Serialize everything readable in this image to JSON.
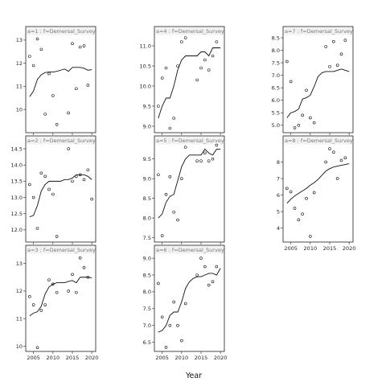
{
  "chart_data": {
    "type": "scatter",
    "xlabel": "Year",
    "x_ticks": [
      2005,
      2010,
      2015,
      2020
    ],
    "xlim": [
      2003,
      2021
    ],
    "panels": [
      {
        "strip": "a=1 : f=Demersal_Survey",
        "ylim": [
          9.1,
          13.1
        ],
        "y_ticks": [
          10,
          11,
          12,
          13
        ],
        "points": [
          [
            2004,
            12.3
          ],
          [
            2005,
            11.9
          ],
          [
            2006,
            13.05
          ],
          [
            2007,
            12.6
          ],
          [
            2008,
            9.8
          ],
          [
            2009,
            11.55
          ],
          [
            2010,
            10.6
          ],
          [
            2011,
            9.35
          ],
          [
            2014,
            9.85
          ],
          [
            2015,
            12.85
          ],
          [
            2016,
            10.9
          ],
          [
            2017,
            12.7
          ],
          [
            2018,
            12.75
          ],
          [
            2019,
            11.05
          ]
        ],
        "fit": [
          [
            2004,
            10.55
          ],
          [
            2005,
            10.8
          ],
          [
            2006,
            11.3
          ],
          [
            2007,
            11.5
          ],
          [
            2008,
            11.6
          ],
          [
            2009,
            11.62
          ],
          [
            2010,
            11.62
          ],
          [
            2011,
            11.65
          ],
          [
            2012,
            11.7
          ],
          [
            2013,
            11.75
          ],
          [
            2014,
            11.65
          ],
          [
            2015,
            11.82
          ],
          [
            2016,
            11.82
          ],
          [
            2017,
            11.82
          ],
          [
            2018,
            11.78
          ],
          [
            2019,
            11.7
          ],
          [
            2020,
            11.72
          ]
        ]
      },
      {
        "strip": "a=2 : f=Demersal_Survey",
        "ylim": [
          11.7,
          14.55
        ],
        "y_ticks": [
          12.0,
          12.5,
          13.0,
          13.5,
          14.0,
          14.5
        ],
        "points": [
          [
            2004,
            13.4
          ],
          [
            2005,
            13.0
          ],
          [
            2006,
            12.05
          ],
          [
            2007,
            13.75
          ],
          [
            2008,
            13.65
          ],
          [
            2009,
            13.25
          ],
          [
            2010,
            13.1
          ],
          [
            2011,
            11.8
          ],
          [
            2014,
            14.5
          ],
          [
            2015,
            13.5
          ],
          [
            2016,
            13.65
          ],
          [
            2017,
            13.7
          ],
          [
            2018,
            13.55
          ],
          [
            2019,
            13.85
          ],
          [
            2020,
            12.95
          ]
        ],
        "fit": [
          [
            2004,
            12.4
          ],
          [
            2005,
            12.45
          ],
          [
            2006,
            12.75
          ],
          [
            2007,
            13.2
          ],
          [
            2008,
            13.4
          ],
          [
            2009,
            13.5
          ],
          [
            2010,
            13.5
          ],
          [
            2011,
            13.5
          ],
          [
            2012,
            13.5
          ],
          [
            2013,
            13.55
          ],
          [
            2014,
            13.55
          ],
          [
            2015,
            13.6
          ],
          [
            2016,
            13.7
          ],
          [
            2017,
            13.7
          ],
          [
            2018,
            13.7
          ],
          [
            2019,
            13.65
          ],
          [
            2020,
            13.55
          ]
        ]
      },
      {
        "strip": "a=3 : f=Demersal_Survey",
        "ylim": [
          9.9,
          13.25
        ],
        "y_ticks": [
          10.0,
          11.0,
          12.0,
          13.0
        ],
        "points": [
          [
            2004,
            11.8
          ],
          [
            2005,
            11.5
          ],
          [
            2006,
            9.95
          ],
          [
            2007,
            11.3
          ],
          [
            2008,
            11.5
          ],
          [
            2009,
            12.4
          ],
          [
            2010,
            12.25
          ],
          [
            2011,
            11.95
          ],
          [
            2014,
            12.0
          ],
          [
            2015,
            12.6
          ],
          [
            2016,
            11.95
          ],
          [
            2017,
            13.2
          ],
          [
            2018,
            12.85
          ],
          [
            2019,
            12.5
          ]
        ],
        "fit": [
          [
            2004,
            11.1
          ],
          [
            2005,
            11.2
          ],
          [
            2006,
            11.25
          ],
          [
            2007,
            11.45
          ],
          [
            2008,
            11.9
          ],
          [
            2009,
            12.15
          ],
          [
            2010,
            12.25
          ],
          [
            2011,
            12.3
          ],
          [
            2012,
            12.3
          ],
          [
            2013,
            12.3
          ],
          [
            2014,
            12.35
          ],
          [
            2015,
            12.38
          ],
          [
            2016,
            12.3
          ],
          [
            2017,
            12.5
          ],
          [
            2018,
            12.5
          ],
          [
            2019,
            12.5
          ],
          [
            2020,
            12.48
          ]
        ]
      },
      {
        "strip": "a=4 : f=Demersal_Survey",
        "ylim": [
          8.9,
          11.2
        ],
        "y_ticks": [
          9.0,
          9.5,
          10.0,
          10.5,
          11.0
        ],
        "points": [
          [
            2004,
            9.5
          ],
          [
            2005,
            10.2
          ],
          [
            2006,
            10.45
          ],
          [
            2007,
            8.95
          ],
          [
            2008,
            9.2
          ],
          [
            2009,
            10.5
          ],
          [
            2010,
            11.1
          ],
          [
            2011,
            11.2
          ],
          [
            2014,
            10.15
          ],
          [
            2015,
            10.45
          ],
          [
            2016,
            10.65
          ],
          [
            2017,
            10.4
          ],
          [
            2018,
            10.75
          ],
          [
            2019,
            11.1
          ]
        ],
        "fit": [
          [
            2004,
            9.2
          ],
          [
            2005,
            9.5
          ],
          [
            2006,
            9.7
          ],
          [
            2007,
            9.7
          ],
          [
            2008,
            10.0
          ],
          [
            2009,
            10.4
          ],
          [
            2010,
            10.65
          ],
          [
            2011,
            10.75
          ],
          [
            2012,
            10.75
          ],
          [
            2013,
            10.75
          ],
          [
            2014,
            10.75
          ],
          [
            2015,
            10.85
          ],
          [
            2016,
            10.85
          ],
          [
            2017,
            10.75
          ],
          [
            2018,
            10.95
          ],
          [
            2019,
            10.95
          ],
          [
            2020,
            10.95
          ]
        ]
      },
      {
        "strip": "a=5 : f=Demersal_Survey",
        "ylim": [
          7.45,
          9.8
        ],
        "y_ticks": [
          7.5,
          8.0,
          8.5,
          9.0,
          9.5
        ],
        "points": [
          [
            2004,
            9.1
          ],
          [
            2005,
            7.55
          ],
          [
            2006,
            8.6
          ],
          [
            2007,
            9.05
          ],
          [
            2008,
            8.15
          ],
          [
            2009,
            7.95
          ],
          [
            2010,
            9.0
          ],
          [
            2011,
            9.8
          ],
          [
            2014,
            9.45
          ],
          [
            2015,
            9.45
          ],
          [
            2016,
            9.65
          ],
          [
            2017,
            9.45
          ],
          [
            2018,
            9.5
          ],
          [
            2019,
            9.85
          ]
        ],
        "fit": [
          [
            2004,
            8.0
          ],
          [
            2005,
            8.1
          ],
          [
            2006,
            8.4
          ],
          [
            2007,
            8.55
          ],
          [
            2008,
            8.6
          ],
          [
            2009,
            8.95
          ],
          [
            2010,
            9.3
          ],
          [
            2011,
            9.5
          ],
          [
            2012,
            9.6
          ],
          [
            2013,
            9.6
          ],
          [
            2014,
            9.6
          ],
          [
            2015,
            9.6
          ],
          [
            2016,
            9.75
          ],
          [
            2017,
            9.65
          ],
          [
            2018,
            9.6
          ],
          [
            2019,
            9.75
          ],
          [
            2020,
            9.75
          ]
        ]
      },
      {
        "strip": "a=6 : f=Demersal_Survey",
        "ylim": [
          6.3,
          9.05
        ],
        "y_ticks": [
          6.5,
          7.0,
          7.5,
          8.0,
          8.5,
          9.0
        ],
        "points": [
          [
            2004,
            8.25
          ],
          [
            2005,
            7.25
          ],
          [
            2006,
            6.35
          ],
          [
            2007,
            7.0
          ],
          [
            2008,
            7.7
          ],
          [
            2009,
            7.0
          ],
          [
            2010,
            6.55
          ],
          [
            2011,
            7.65
          ],
          [
            2014,
            8.5
          ],
          [
            2015,
            9.0
          ],
          [
            2016,
            8.75
          ],
          [
            2017,
            8.2
          ],
          [
            2018,
            8.3
          ],
          [
            2019,
            8.75
          ]
        ],
        "fit": [
          [
            2004,
            6.8
          ],
          [
            2005,
            6.85
          ],
          [
            2006,
            7.0
          ],
          [
            2007,
            7.3
          ],
          [
            2008,
            7.4
          ],
          [
            2009,
            7.4
          ],
          [
            2010,
            7.7
          ],
          [
            2011,
            8.1
          ],
          [
            2012,
            8.3
          ],
          [
            2013,
            8.4
          ],
          [
            2014,
            8.45
          ],
          [
            2015,
            8.45
          ],
          [
            2016,
            8.5
          ],
          [
            2017,
            8.55
          ],
          [
            2018,
            8.55
          ],
          [
            2019,
            8.5
          ],
          [
            2020,
            8.7
          ]
        ]
      },
      {
        "strip": "a=7 : f=Demersal_Survey",
        "ylim": [
          4.8,
          8.5
        ],
        "y_ticks": [
          5.0,
          5.5,
          6.0,
          6.5,
          7.0,
          7.5,
          8.0,
          8.5
        ],
        "points": [
          [
            2004,
            7.55
          ],
          [
            2005,
            6.75
          ],
          [
            2006,
            4.9
          ],
          [
            2007,
            5.0
          ],
          [
            2008,
            5.4
          ],
          [
            2009,
            6.4
          ],
          [
            2010,
            5.3
          ],
          [
            2011,
            5.1
          ],
          [
            2014,
            8.15
          ],
          [
            2015,
            7.35
          ],
          [
            2016,
            8.35
          ],
          [
            2017,
            7.4
          ],
          [
            2018,
            7.85
          ],
          [
            2019,
            8.4
          ]
        ],
        "fit": [
          [
            2004,
            5.3
          ],
          [
            2005,
            5.5
          ],
          [
            2006,
            5.55
          ],
          [
            2007,
            5.65
          ],
          [
            2008,
            6.05
          ],
          [
            2009,
            6.1
          ],
          [
            2010,
            6.2
          ],
          [
            2011,
            6.55
          ],
          [
            2012,
            6.95
          ],
          [
            2013,
            7.1
          ],
          [
            2014,
            7.15
          ],
          [
            2015,
            7.15
          ],
          [
            2016,
            7.15
          ],
          [
            2017,
            7.2
          ],
          [
            2018,
            7.25
          ],
          [
            2019,
            7.2
          ],
          [
            2020,
            7.15
          ]
        ]
      },
      {
        "strip": "a=8 : f=Demersal_Survey",
        "ylim": [
          3.3,
          8.9
        ],
        "y_ticks": [
          4,
          5,
          6,
          7,
          8
        ],
        "points": [
          [
            2004,
            6.4
          ],
          [
            2005,
            6.2
          ],
          [
            2006,
            5.2
          ],
          [
            2007,
            4.5
          ],
          [
            2008,
            4.85
          ],
          [
            2009,
            5.8
          ],
          [
            2010,
            3.5
          ],
          [
            2011,
            6.15
          ],
          [
            2014,
            8.0
          ],
          [
            2015,
            8.8
          ],
          [
            2016,
            8.6
          ],
          [
            2017,
            7.0
          ],
          [
            2018,
            8.1
          ],
          [
            2019,
            8.25
          ]
        ],
        "fit": [
          [
            2004,
            5.5
          ],
          [
            2005,
            5.75
          ],
          [
            2006,
            5.95
          ],
          [
            2007,
            6.1
          ],
          [
            2008,
            6.25
          ],
          [
            2009,
            6.4
          ],
          [
            2010,
            6.6
          ],
          [
            2011,
            6.75
          ],
          [
            2012,
            6.95
          ],
          [
            2013,
            7.2
          ],
          [
            2014,
            7.45
          ],
          [
            2015,
            7.6
          ],
          [
            2016,
            7.7
          ],
          [
            2017,
            7.75
          ],
          [
            2018,
            7.8
          ],
          [
            2019,
            7.85
          ],
          [
            2020,
            7.9
          ]
        ]
      }
    ]
  }
}
